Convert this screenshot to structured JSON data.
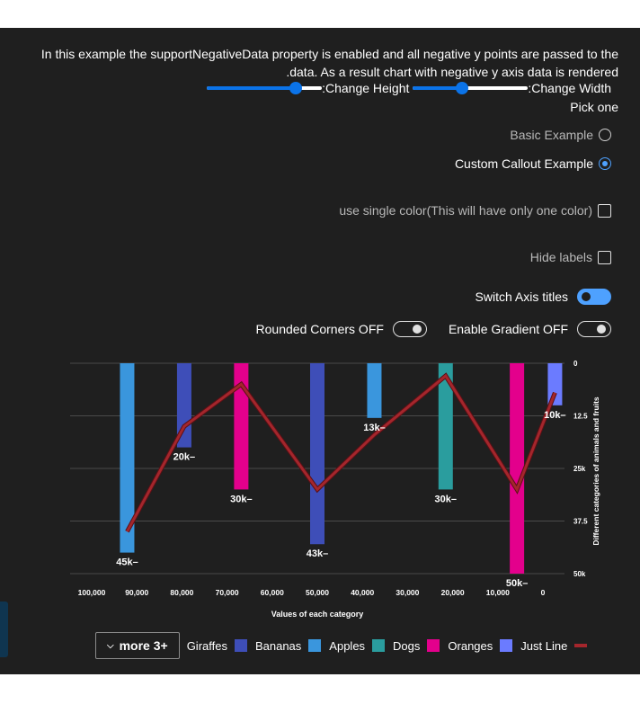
{
  "description": "In this example the supportNegativeData property is enabled and all negative y points are passed to the .data. As a result chart with negative y axis data is rendered",
  "controls": {
    "height_label": ":Change Height",
    "height_value": 0.77,
    "width_label": ":Change Width",
    "width_value": 0.43,
    "pick_one": "Pick one",
    "radio_basic": "Basic Example",
    "radio_custom": "Custom Callout Example",
    "single_color": "use single color(This will have only one color)",
    "hide_labels": "Hide labels",
    "switch_axis": "Switch Axis titles",
    "rounded": "Rounded Corners OFF",
    "gradient": "Enable Gradient OFF"
  },
  "colors": {
    "giraffes": "#3e4eb8",
    "bananas": "#3a96dd",
    "apples": "#2a9d9e",
    "dogs": "#e3008c",
    "oranges": "#6b7bff",
    "just_line": "#a4262c"
  },
  "legend": {
    "more": "more 3+",
    "items": [
      {
        "label": "Giraffes",
        "color": "#3e4eb8",
        "shape": "rect"
      },
      {
        "label": "Bananas",
        "color": "#3a96dd",
        "shape": "rect"
      },
      {
        "label": "Apples",
        "color": "#2a9d9e",
        "shape": "rect"
      },
      {
        "label": "Dogs",
        "color": "#e3008c",
        "shape": "rect"
      },
      {
        "label": "Oranges",
        "color": "#6b7bff",
        "shape": "rect"
      },
      {
        "label": "Just Line",
        "color": "#a4262c",
        "shape": "line"
      }
    ]
  },
  "chart_data": {
    "type": "bar",
    "orientation": "vertical, negative y",
    "xlabel": "Values of each category",
    "ylabel": "Different categories of animals and fruits",
    "x_ticks": [
      "100,000",
      "90,000",
      "80,000",
      "70,000",
      "60,000",
      "50,000",
      "40,000",
      "30,000",
      "20,000",
      "10,000",
      "0"
    ],
    "y_ticks": [
      "0",
      "12.5",
      "25k",
      "37.5",
      "50k"
    ],
    "xlim": [
      104000,
      0
    ],
    "ylim": [
      0,
      -50000
    ],
    "grid": true,
    "bars": [
      {
        "x": 92000,
        "y": -45000,
        "label": "45k",
        "series": "Bananas"
      },
      {
        "x": 80000,
        "y": -20000,
        "label": "20k",
        "series": "Giraffes"
      },
      {
        "x": 68000,
        "y": -30000,
        "label": "30k",
        "series": "Dogs"
      },
      {
        "x": 52000,
        "y": -43000,
        "label": "43k",
        "series": "Giraffes"
      },
      {
        "x": 40000,
        "y": -13000,
        "label": "13k",
        "series": "Bananas"
      },
      {
        "x": 25000,
        "y": -30000,
        "label": "30k",
        "series": "Apples"
      },
      {
        "x": 10000,
        "y": -50000,
        "label": "50k",
        "series": "Dogs"
      },
      {
        "x": 2000,
        "y": -10000,
        "label": "10k",
        "series": "Oranges"
      }
    ],
    "line": {
      "series": "Just Line",
      "x": [
        92000,
        80000,
        68000,
        52000,
        40000,
        25000,
        10000,
        2000
      ],
      "y": [
        -40000,
        -15000,
        -5000,
        -30000,
        -17000,
        -3000,
        -30000,
        -7000
      ]
    }
  }
}
